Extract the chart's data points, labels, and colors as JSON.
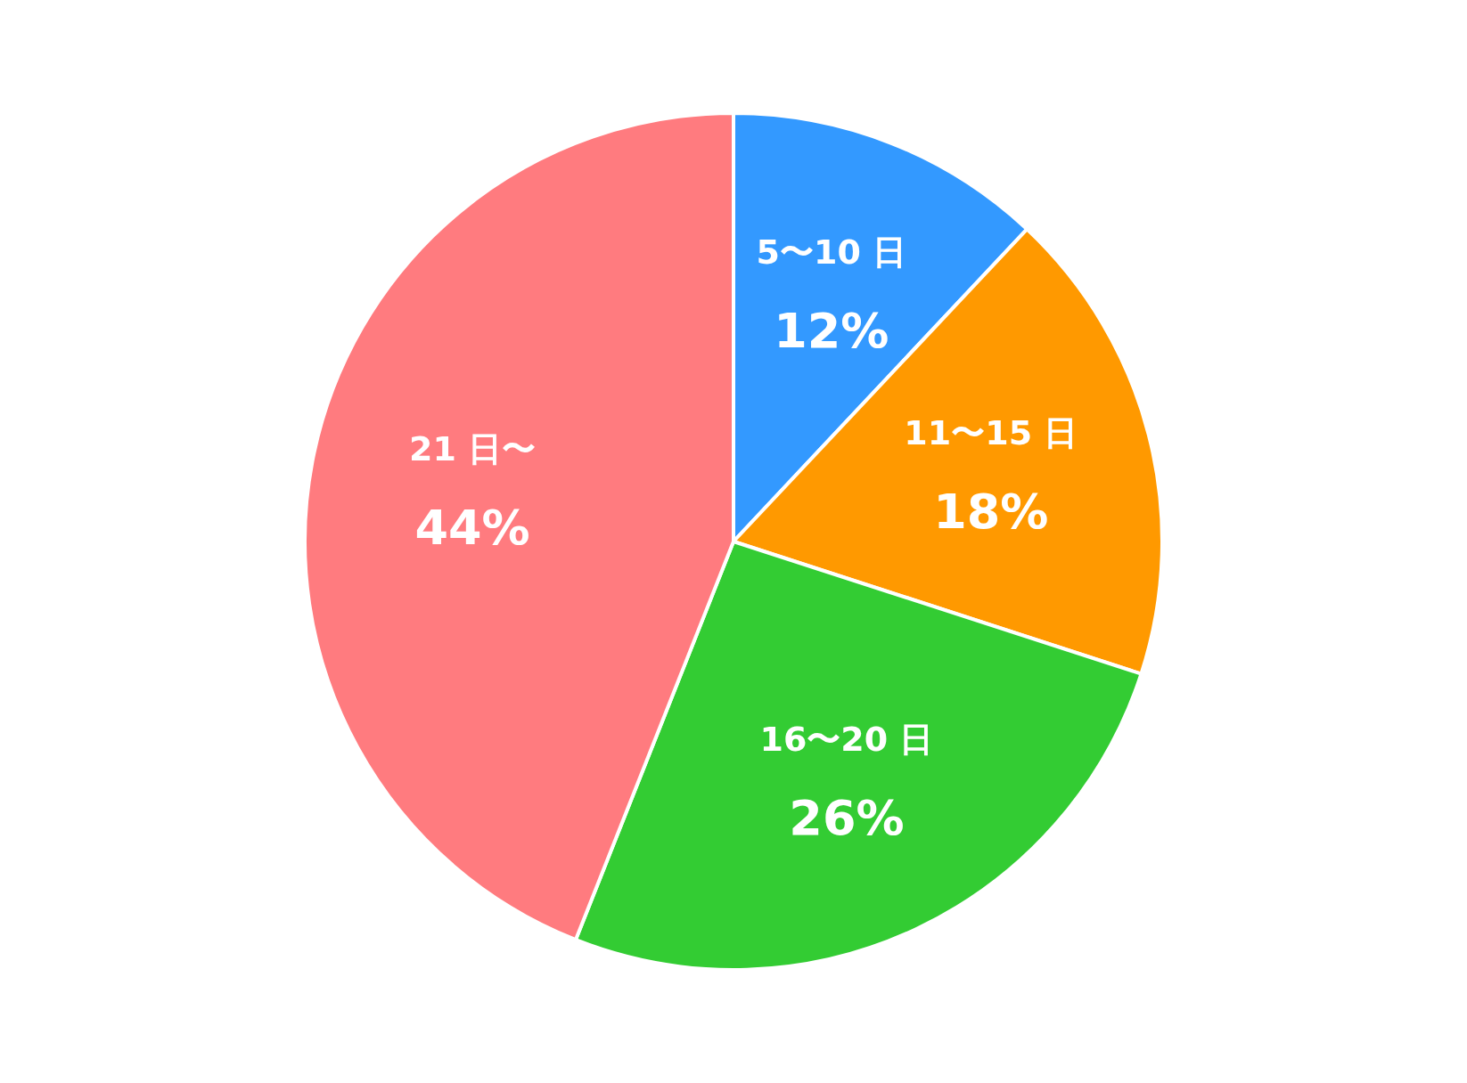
{
  "chart_data": {
    "type": "pie",
    "categories": [
      "5〜10 日",
      "11〜15 日",
      "16〜20 日",
      "21 日〜"
    ],
    "values": [
      12,
      18,
      26,
      44
    ],
    "colors": [
      "#3399ff",
      "#ff9900",
      "#33cc33",
      "#ff7b7f"
    ],
    "value_labels": [
      "12%",
      "18%",
      "26%",
      "44%"
    ]
  }
}
